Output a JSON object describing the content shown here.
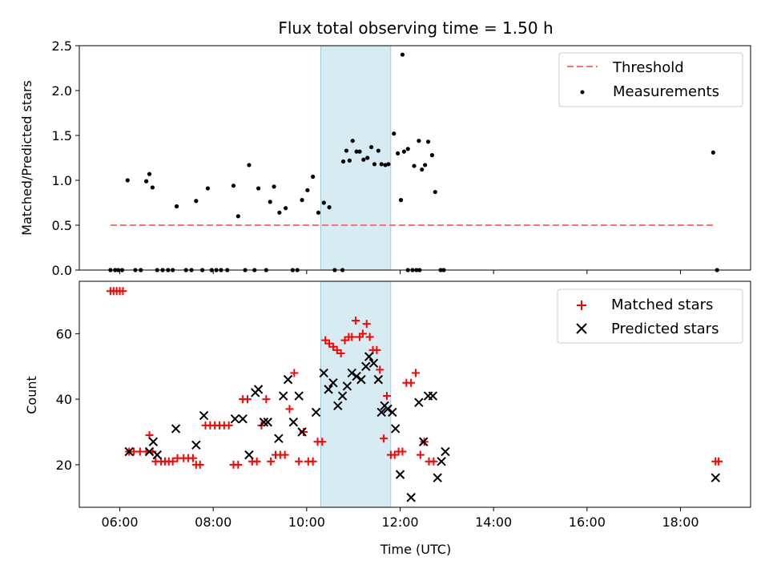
{
  "chart_data": [
    {
      "type": "scatter",
      "title": "Flux total observing time = 1.50 h",
      "ylabel": "Matched/Predicted stars",
      "xlabel": "",
      "xlim": [
        "05:08",
        "19:30"
      ],
      "ylim": [
        0,
        2.5
      ],
      "yticks": [
        "0.0",
        "0.5",
        "1.0",
        "1.5",
        "2.0",
        "2.5"
      ],
      "grid": false,
      "legend_position": "top-right",
      "highlight_span": {
        "start": "10:18",
        "end": "11:48",
        "color": "#add8e6"
      },
      "threshold": {
        "name": "Threshold",
        "value": 0.5,
        "x_start": "05:48",
        "x_end": "18:42",
        "color": "#ff7070",
        "style": "dashed"
      },
      "series": [
        {
          "name": "Measurements",
          "color": "#000000",
          "points": [
            [
              "05:48",
              0
            ],
            [
              "05:54",
              0
            ],
            [
              "05:58",
              0
            ],
            [
              "06:03",
              0
            ],
            [
              "06:10",
              1.0
            ],
            [
              "06:20",
              0
            ],
            [
              "06:27",
              0
            ],
            [
              "06:34",
              0.99
            ],
            [
              "06:38",
              1.07
            ],
            [
              "06:42",
              0.92
            ],
            [
              "06:48",
              0
            ],
            [
              "06:55",
              0
            ],
            [
              "07:02",
              0
            ],
            [
              "07:08",
              0
            ],
            [
              "07:13",
              0.71
            ],
            [
              "07:25",
              0
            ],
            [
              "07:32",
              0
            ],
            [
              "07:38",
              0.77
            ],
            [
              "07:46",
              0
            ],
            [
              "07:53",
              0.91
            ],
            [
              "07:58",
              0
            ],
            [
              "08:04",
              0
            ],
            [
              "08:10",
              0
            ],
            [
              "08:18",
              0
            ],
            [
              "08:26",
              0.94
            ],
            [
              "08:32",
              0.6
            ],
            [
              "08:41",
              0
            ],
            [
              "08:46",
              1.17
            ],
            [
              "08:53",
              0
            ],
            [
              "08:58",
              0.91
            ],
            [
              "09:08",
              0
            ],
            [
              "09:13",
              0.76
            ],
            [
              "09:18",
              0.93
            ],
            [
              "09:25",
              0.64
            ],
            [
              "09:33",
              0.69
            ],
            [
              "09:42",
              0
            ],
            [
              "09:48",
              0
            ],
            [
              "09:54",
              0.78
            ],
            [
              "10:01",
              0.89
            ],
            [
              "10:08",
              1.04
            ],
            [
              "10:15",
              0.64
            ],
            [
              "10:22",
              0.75
            ],
            [
              "10:29",
              0.7
            ],
            [
              "10:36",
              0
            ],
            [
              "10:46",
              0
            ],
            [
              "10:47",
              1.21
            ],
            [
              "10:51",
              1.33
            ],
            [
              "10:55",
              1.22
            ],
            [
              "10:59",
              1.44
            ],
            [
              "11:04",
              1.32
            ],
            [
              "11:08",
              1.32
            ],
            [
              "11:13",
              1.23
            ],
            [
              "11:18",
              1.25
            ],
            [
              "11:23",
              1.37
            ],
            [
              "11:27",
              1.18
            ],
            [
              "11:32",
              1.33
            ],
            [
              "11:36",
              1.18
            ],
            [
              "11:41",
              1.17
            ],
            [
              "11:45",
              1.18
            ],
            [
              "11:52",
              1.52
            ],
            [
              "11:57",
              1.3
            ],
            [
              "12:01",
              0.78
            ],
            [
              "12:05",
              1.32
            ],
            [
              "12:10",
              1.35
            ],
            [
              "12:16",
              0
            ],
            [
              "12:21",
              0
            ],
            [
              "12:25",
              0
            ],
            [
              "12:03",
              2.4
            ],
            [
              "12:10",
              0
            ],
            [
              "12:18",
              1.16
            ],
            [
              "12:24",
              1.44
            ],
            [
              "12:28",
              1.12
            ],
            [
              "12:32",
              1.17
            ],
            [
              "12:36",
              1.43
            ],
            [
              "12:41",
              1.28
            ],
            [
              "12:45",
              0.87
            ],
            [
              "12:52",
              0
            ],
            [
              "12:56",
              0
            ],
            [
              "18:42",
              1.31
            ],
            [
              "18:47",
              0
            ]
          ]
        }
      ]
    },
    {
      "type": "scatter",
      "title": "",
      "xlabel": "Time (UTC)",
      "ylabel": "Count",
      "xlim": [
        "05:08",
        "19:30"
      ],
      "ylim": [
        7,
        76
      ],
      "xticks": [
        "06:00",
        "08:00",
        "10:00",
        "12:00",
        "14:00",
        "16:00",
        "18:00"
      ],
      "yticks": [
        "20",
        "40",
        "60"
      ],
      "grid": false,
      "legend_position": "top-right",
      "highlight_span": {
        "start": "10:18",
        "end": "11:48",
        "color": "#add8e6"
      },
      "series": [
        {
          "name": "Matched stars",
          "marker": "plus",
          "color": "#ff0000",
          "points": [
            [
              "05:48",
              73
            ],
            [
              "05:52",
              73
            ],
            [
              "05:56",
              73
            ],
            [
              "06:00",
              73
            ],
            [
              "06:04",
              73
            ],
            [
              "06:12",
              24
            ],
            [
              "06:18",
              24
            ],
            [
              "06:26",
              24
            ],
            [
              "06:34",
              24
            ],
            [
              "06:38",
              29
            ],
            [
              "06:42",
              24
            ],
            [
              "06:46",
              21
            ],
            [
              "06:53",
              21
            ],
            [
              "06:58",
              21
            ],
            [
              "07:03",
              21
            ],
            [
              "07:08",
              21
            ],
            [
              "07:14",
              22
            ],
            [
              "07:22",
              22
            ],
            [
              "07:28",
              22
            ],
            [
              "07:34",
              22
            ],
            [
              "07:38",
              20
            ],
            [
              "07:43",
              20
            ],
            [
              "07:50",
              32
            ],
            [
              "07:56",
              32
            ],
            [
              "08:02",
              32
            ],
            [
              "08:08",
              32
            ],
            [
              "08:14",
              32
            ],
            [
              "08:20",
              32
            ],
            [
              "08:26",
              20
            ],
            [
              "08:32",
              20
            ],
            [
              "08:38",
              40
            ],
            [
              "08:44",
              40
            ],
            [
              "08:50",
              21
            ],
            [
              "08:56",
              21
            ],
            [
              "09:02",
              32
            ],
            [
              "09:08",
              40
            ],
            [
              "09:14",
              21
            ],
            [
              "09:20",
              23
            ],
            [
              "09:26",
              23
            ],
            [
              "09:32",
              23
            ],
            [
              "09:38",
              37
            ],
            [
              "09:44",
              48
            ],
            [
              "09:50",
              21
            ],
            [
              "09:56",
              30
            ],
            [
              "10:02",
              21
            ],
            [
              "10:08",
              21
            ],
            [
              "10:14",
              27
            ],
            [
              "10:20",
              27
            ],
            [
              "10:24",
              58
            ],
            [
              "10:29",
              57
            ],
            [
              "10:34",
              56
            ],
            [
              "10:39",
              55
            ],
            [
              "10:44",
              54
            ],
            [
              "10:49",
              58
            ],
            [
              "10:54",
              59
            ],
            [
              "10:58",
              59
            ],
            [
              "11:03",
              64
            ],
            [
              "11:08",
              59
            ],
            [
              "11:12",
              60
            ],
            [
              "11:17",
              63
            ],
            [
              "11:21",
              59
            ],
            [
              "11:25",
              55
            ],
            [
              "11:30",
              55
            ],
            [
              "11:34",
              49
            ],
            [
              "11:39",
              28
            ],
            [
              "11:43",
              41
            ],
            [
              "11:48",
              23
            ],
            [
              "11:53",
              23
            ],
            [
              "11:58",
              24
            ],
            [
              "12:03",
              24
            ],
            [
              "12:08",
              45
            ],
            [
              "12:14",
              45
            ],
            [
              "12:20",
              48
            ],
            [
              "12:26",
              23
            ],
            [
              "12:31",
              27
            ],
            [
              "12:37",
              21
            ],
            [
              "12:43",
              21
            ],
            [
              "18:45",
              21
            ],
            [
              "18:49",
              21
            ]
          ]
        },
        {
          "name": "Predicted stars",
          "marker": "x",
          "color": "#000000",
          "points": [
            [
              "06:12",
              24
            ],
            [
              "06:38",
              24
            ],
            [
              "06:43",
              27
            ],
            [
              "06:48",
              23
            ],
            [
              "07:12",
              31
            ],
            [
              "07:38",
              26
            ],
            [
              "07:48",
              35
            ],
            [
              "08:28",
              34
            ],
            [
              "08:38",
              34
            ],
            [
              "08:46",
              23
            ],
            [
              "08:54",
              42
            ],
            [
              "08:58",
              43
            ],
            [
              "09:05",
              33
            ],
            [
              "09:10",
              33
            ],
            [
              "09:24",
              28
            ],
            [
              "09:30",
              41
            ],
            [
              "09:36",
              46
            ],
            [
              "09:43",
              33
            ],
            [
              "09:50",
              41
            ],
            [
              "09:54",
              30
            ],
            [
              "10:12",
              36
            ],
            [
              "10:22",
              48
            ],
            [
              "10:28",
              43
            ],
            [
              "10:34",
              45
            ],
            [
              "10:40",
              38
            ],
            [
              "10:46",
              41
            ],
            [
              "10:52",
              44
            ],
            [
              "10:58",
              48
            ],
            [
              "11:04",
              47
            ],
            [
              "11:10",
              46
            ],
            [
              "11:16",
              50
            ],
            [
              "11:20",
              53
            ],
            [
              "11:26",
              51
            ],
            [
              "11:32",
              46
            ],
            [
              "11:36",
              36
            ],
            [
              "11:40",
              38
            ],
            [
              "11:44",
              37
            ],
            [
              "11:50",
              36
            ],
            [
              "11:54",
              31
            ],
            [
              "12:00",
              17
            ],
            [
              "12:14",
              10
            ],
            [
              "12:24",
              39
            ],
            [
              "12:30",
              27
            ],
            [
              "12:36",
              41
            ],
            [
              "12:42",
              41
            ],
            [
              "12:48",
              16
            ],
            [
              "12:53",
              21
            ],
            [
              "12:58",
              24
            ],
            [
              "18:45",
              16
            ]
          ]
        }
      ]
    }
  ]
}
